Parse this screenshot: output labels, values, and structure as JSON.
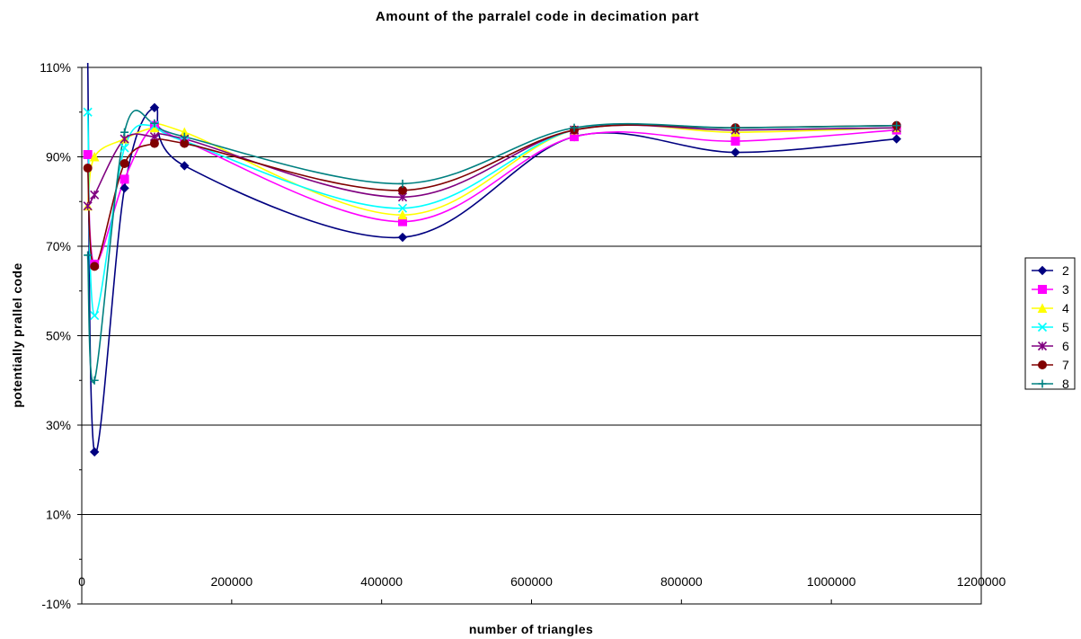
{
  "chart_data": {
    "type": "line",
    "title": "Amount of the parralel code in decimation part",
    "xlabel": "number of triangles",
    "ylabel": "potentially prallel code",
    "xlim": [
      0,
      1200000
    ],
    "ylim": [
      -0.1,
      1.1
    ],
    "x_ticks": [
      0,
      200000,
      400000,
      600000,
      800000,
      1000000,
      1200000
    ],
    "x_tick_labels": [
      "0",
      "200000",
      "400000",
      "600000",
      "800000",
      "1000000",
      "1200000"
    ],
    "y_ticks": [
      -0.1,
      0.1,
      0.3,
      0.5,
      0.7,
      0.9,
      1.1
    ],
    "y_tick_labels": [
      "-10%",
      "10%",
      "30%",
      "50%",
      "70%",
      "90%",
      "110%"
    ],
    "grid": "horizontal",
    "legend_position": "right",
    "series": [
      {
        "name": "2",
        "color": "#000080",
        "marker": "diamond",
        "x": [
          8000,
          17000,
          57000,
          97000,
          137000,
          428000,
          657000,
          872000,
          1087000
        ],
        "y": [
          1.11,
          0.24,
          0.83,
          1.01,
          0.88,
          0.72,
          0.945,
          0.91,
          0.94
        ]
      },
      {
        "name": "3",
        "color": "#ff00ff",
        "marker": "square",
        "x": [
          8000,
          17000,
          57000,
          97000,
          137000,
          428000,
          657000,
          872000,
          1087000
        ],
        "y": [
          0.905,
          0.66,
          0.85,
          0.97,
          0.935,
          0.755,
          0.945,
          0.935,
          0.96
        ]
      },
      {
        "name": "4",
        "color": "#ffff00",
        "marker": "triangle",
        "x": [
          8000,
          17000,
          57000,
          97000,
          137000,
          428000,
          657000,
          872000,
          1087000
        ],
        "y": [
          0.79,
          0.9,
          0.94,
          0.965,
          0.955,
          0.77,
          0.96,
          0.955,
          0.965
        ]
      },
      {
        "name": "5",
        "color": "#00ffff",
        "marker": "x",
        "x": [
          8000,
          17000,
          57000,
          97000,
          137000,
          428000,
          657000,
          872000,
          1087000
        ],
        "y": [
          1.0,
          0.545,
          0.92,
          0.97,
          0.935,
          0.785,
          0.96,
          0.96,
          0.965
        ]
      },
      {
        "name": "6",
        "color": "#800080",
        "marker": "star",
        "x": [
          8000,
          17000,
          57000,
          97000,
          137000,
          428000,
          657000,
          872000,
          1087000
        ],
        "y": [
          0.79,
          0.815,
          0.94,
          0.945,
          0.94,
          0.81,
          0.96,
          0.96,
          0.965
        ]
      },
      {
        "name": "7",
        "color": "#800000",
        "marker": "circle",
        "x": [
          8000,
          17000,
          57000,
          97000,
          137000,
          428000,
          657000,
          872000,
          1087000
        ],
        "y": [
          0.875,
          0.655,
          0.885,
          0.93,
          0.93,
          0.825,
          0.96,
          0.965,
          0.97
        ]
      },
      {
        "name": "8",
        "color": "#008080",
        "marker": "plus",
        "x": [
          8000,
          17000,
          57000,
          97000,
          137000,
          428000,
          657000,
          872000,
          1087000
        ],
        "y": [
          0.68,
          0.4,
          0.955,
          0.975,
          0.945,
          0.84,
          0.965,
          0.965,
          0.97
        ]
      }
    ]
  }
}
